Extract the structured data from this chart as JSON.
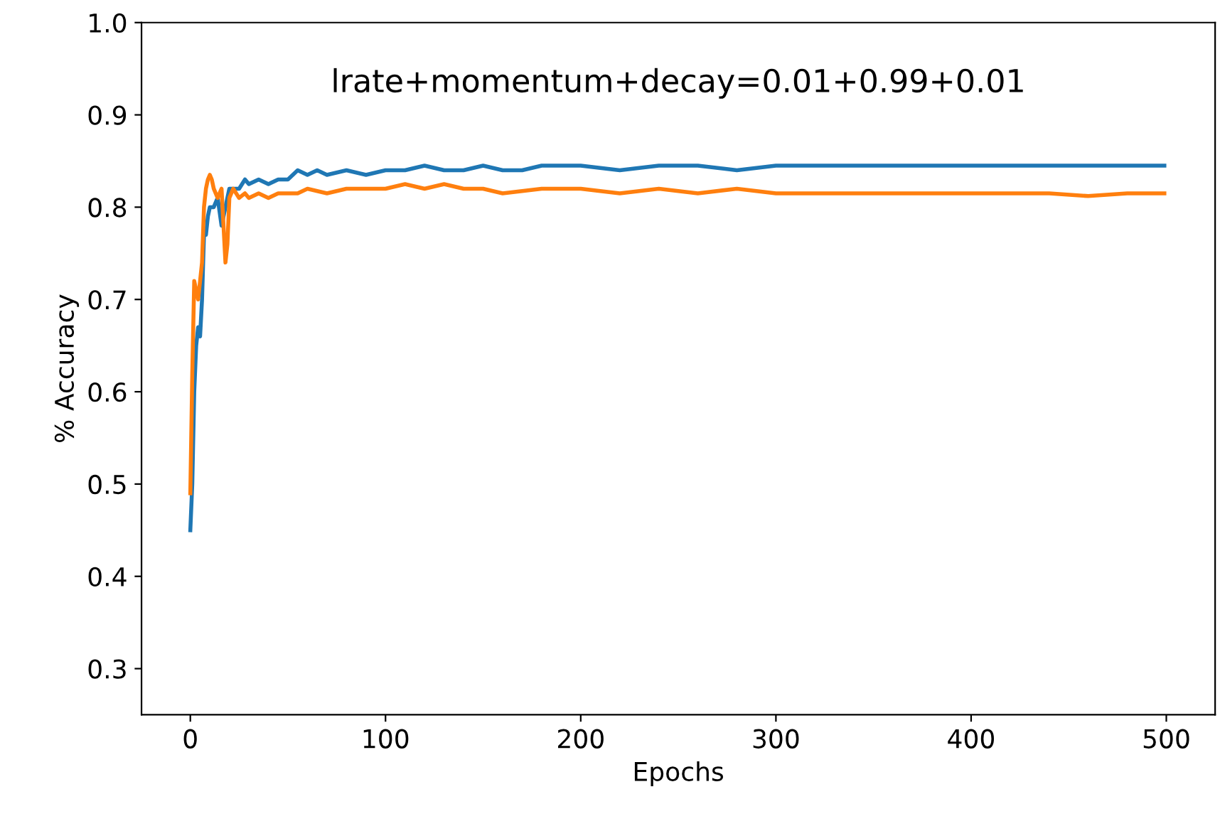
{
  "chart_data": {
    "type": "line",
    "title": "lrate+momentum+decay=0.01+0.99+0.01",
    "xlabel": "Epochs",
    "ylabel": "% Accuracy",
    "xlim": [
      -25,
      525
    ],
    "xticks": [
      0,
      100,
      200,
      300,
      400,
      500
    ],
    "ylim": [
      0.25,
      1.0
    ],
    "yticks": [
      0.3,
      0.4,
      0.5,
      0.6,
      0.7,
      0.8,
      0.9,
      {
        "value": 1.0,
        "label": "1.0"
      }
    ],
    "grid": false,
    "legend": false,
    "series": [
      {
        "color": "#1f77b4",
        "x": [
          0,
          1,
          2,
          3,
          4,
          5,
          6,
          7,
          8,
          9,
          10,
          12,
          14,
          16,
          18,
          20,
          22,
          25,
          28,
          30,
          35,
          40,
          45,
          50,
          55,
          60,
          65,
          70,
          80,
          90,
          100,
          110,
          120,
          130,
          140,
          150,
          160,
          170,
          180,
          200,
          220,
          240,
          260,
          280,
          300,
          320,
          340,
          360,
          380,
          400,
          420,
          440,
          460,
          480,
          499
        ],
        "values": [
          0.45,
          0.5,
          0.6,
          0.65,
          0.67,
          0.66,
          0.7,
          0.77,
          0.77,
          0.79,
          0.8,
          0.8,
          0.81,
          0.78,
          0.8,
          0.82,
          0.82,
          0.82,
          0.83,
          0.825,
          0.83,
          0.825,
          0.83,
          0.83,
          0.84,
          0.835,
          0.84,
          0.835,
          0.84,
          0.835,
          0.84,
          0.84,
          0.845,
          0.84,
          0.84,
          0.845,
          0.84,
          0.84,
          0.845,
          0.845,
          0.84,
          0.845,
          0.845,
          0.84,
          0.845,
          0.845,
          0.845,
          0.845,
          0.845,
          0.845,
          0.845,
          0.845,
          0.845,
          0.845,
          0.845
        ]
      },
      {
        "color": "#ff7f0e",
        "x": [
          0,
          1,
          2,
          3,
          4,
          5,
          6,
          7,
          8,
          9,
          10,
          11,
          12,
          14,
          16,
          17,
          18,
          19,
          20,
          22,
          25,
          28,
          30,
          35,
          40,
          45,
          50,
          55,
          60,
          70,
          80,
          90,
          100,
          110,
          120,
          130,
          140,
          150,
          160,
          180,
          200,
          220,
          240,
          260,
          280,
          300,
          320,
          340,
          360,
          380,
          400,
          420,
          440,
          460,
          480,
          499
        ],
        "values": [
          0.49,
          0.62,
          0.72,
          0.71,
          0.7,
          0.72,
          0.74,
          0.8,
          0.82,
          0.83,
          0.835,
          0.83,
          0.82,
          0.81,
          0.82,
          0.78,
          0.74,
          0.76,
          0.81,
          0.82,
          0.81,
          0.815,
          0.81,
          0.815,
          0.81,
          0.815,
          0.815,
          0.815,
          0.82,
          0.815,
          0.82,
          0.82,
          0.82,
          0.825,
          0.82,
          0.825,
          0.82,
          0.82,
          0.815,
          0.82,
          0.82,
          0.815,
          0.82,
          0.815,
          0.82,
          0.815,
          0.815,
          0.815,
          0.815,
          0.815,
          0.815,
          0.815,
          0.815,
          0.812,
          0.815,
          0.815
        ]
      }
    ]
  }
}
